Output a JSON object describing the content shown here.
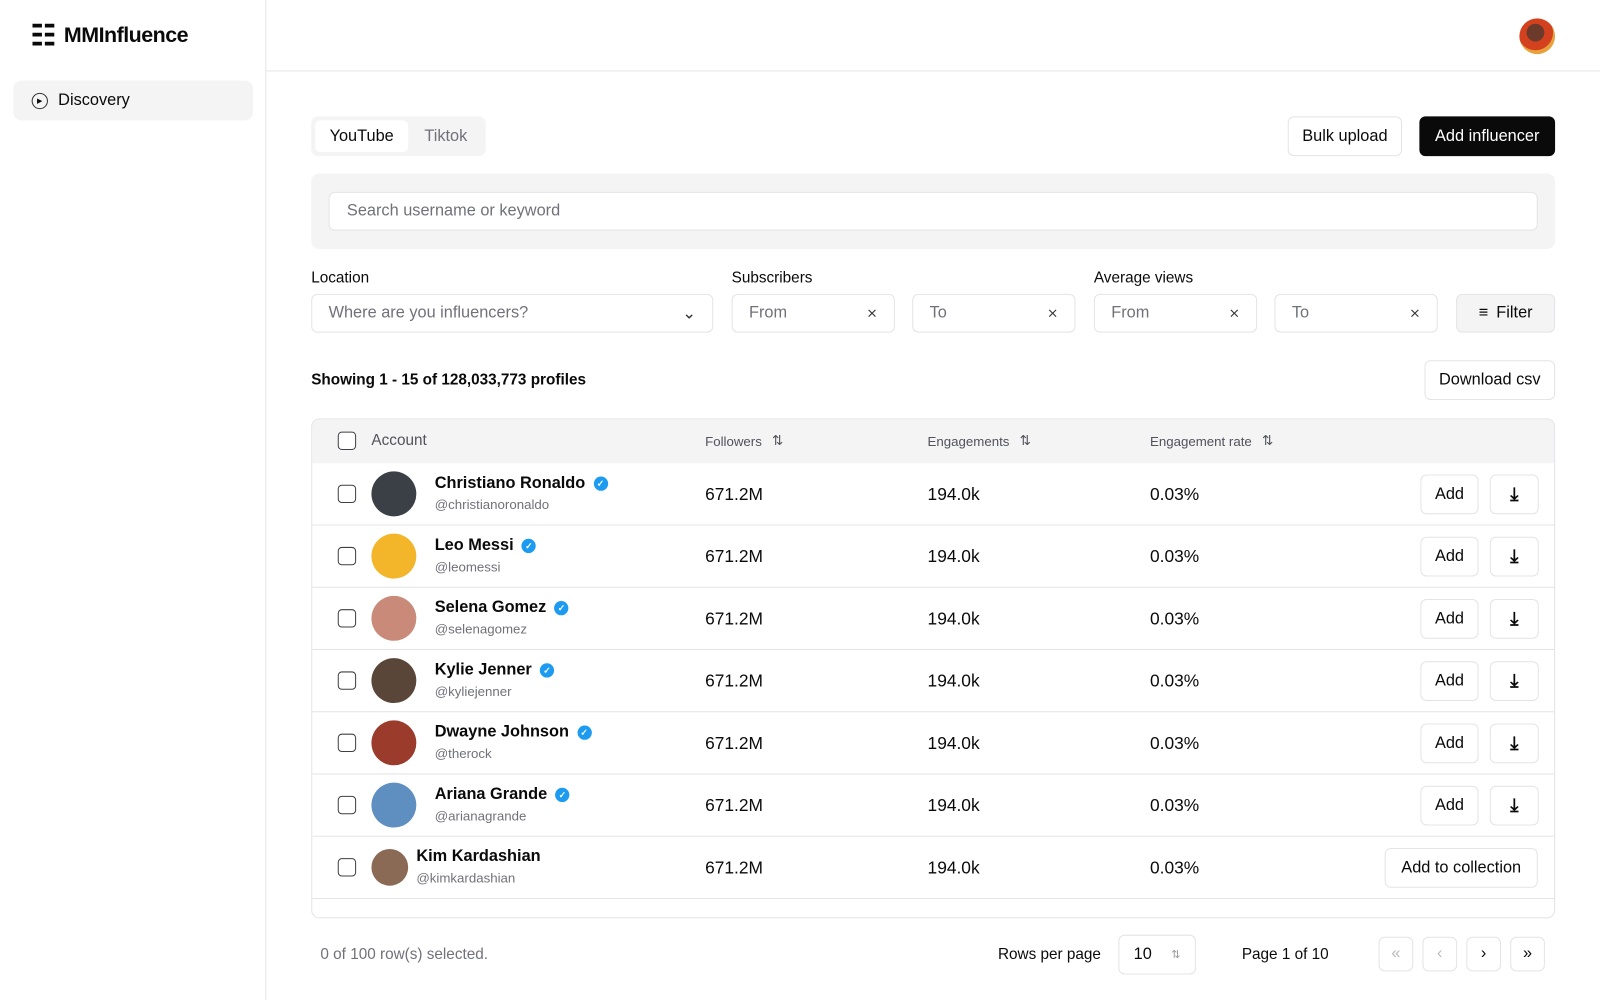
{
  "app": {
    "name": "MMInfluence"
  },
  "sidebar": {
    "items": [
      {
        "label": "Discovery"
      }
    ]
  },
  "tabs": [
    {
      "label": "YouTube"
    },
    {
      "label": "Tiktok"
    }
  ],
  "actions": {
    "bulk_upload": "Bulk upload",
    "add_influencer": "Add influencer",
    "download_csv": "Download csv",
    "filter": "Filter"
  },
  "search": {
    "placeholder": "Search username or keyword"
  },
  "filters": {
    "location_label": "Location",
    "location_placeholder": "Where are you influencers?",
    "subscribers_label": "Subscribers",
    "avg_views_label": "Average views",
    "from": "From",
    "to": "To"
  },
  "summary": "Showing 1 - 15 of 128,033,773 profiles",
  "table": {
    "headers": {
      "account": "Account",
      "followers": "Followers",
      "engagements": "Engagements",
      "rate": "Engagement rate"
    },
    "rows": [
      {
        "name": "Christiano Ronaldo",
        "handle": "@christianoronaldo",
        "followers": "671.2M",
        "engagements": "194.0k",
        "rate": "0.03%",
        "verified": true,
        "action": "Add",
        "color": "#3b3f46"
      },
      {
        "name": "Leo Messi",
        "handle": "@leomessi",
        "followers": "671.2M",
        "engagements": "194.0k",
        "rate": "0.03%",
        "verified": true,
        "action": "Add",
        "color": "#f3b52a"
      },
      {
        "name": "Selena Gomez",
        "handle": "@selenagomez",
        "followers": "671.2M",
        "engagements": "194.0k",
        "rate": "0.03%",
        "verified": true,
        "action": "Add",
        "color": "#c98a7a"
      },
      {
        "name": "Kylie Jenner",
        "handle": "@kyliejenner",
        "followers": "671.2M",
        "engagements": "194.0k",
        "rate": "0.03%",
        "verified": true,
        "action": "Add",
        "color": "#5a4638"
      },
      {
        "name": "Dwayne Johnson",
        "handle": "@therock",
        "followers": "671.2M",
        "engagements": "194.0k",
        "rate": "0.03%",
        "verified": true,
        "action": "Add",
        "color": "#9a3b2c"
      },
      {
        "name": "Ariana Grande",
        "handle": "@arianagrande",
        "followers": "671.2M",
        "engagements": "194.0k",
        "rate": "0.03%",
        "verified": true,
        "action": "Add",
        "color": "#5f8fc0"
      },
      {
        "name": "Kim Kardashian",
        "handle": "@kimkardashian",
        "followers": "671.2M",
        "engagements": "194.0k",
        "rate": "0.03%",
        "verified": false,
        "action": "Add to collection",
        "color": "#8a6a55"
      }
    ]
  },
  "footer": {
    "selected": "0 of 100 row(s) selected.",
    "rows_per_page_label": "Rows per page",
    "rows_per_page": "10",
    "page": "Page 1 of 10",
    "first": "«",
    "prev": "‹",
    "next": "›",
    "last": "»"
  }
}
